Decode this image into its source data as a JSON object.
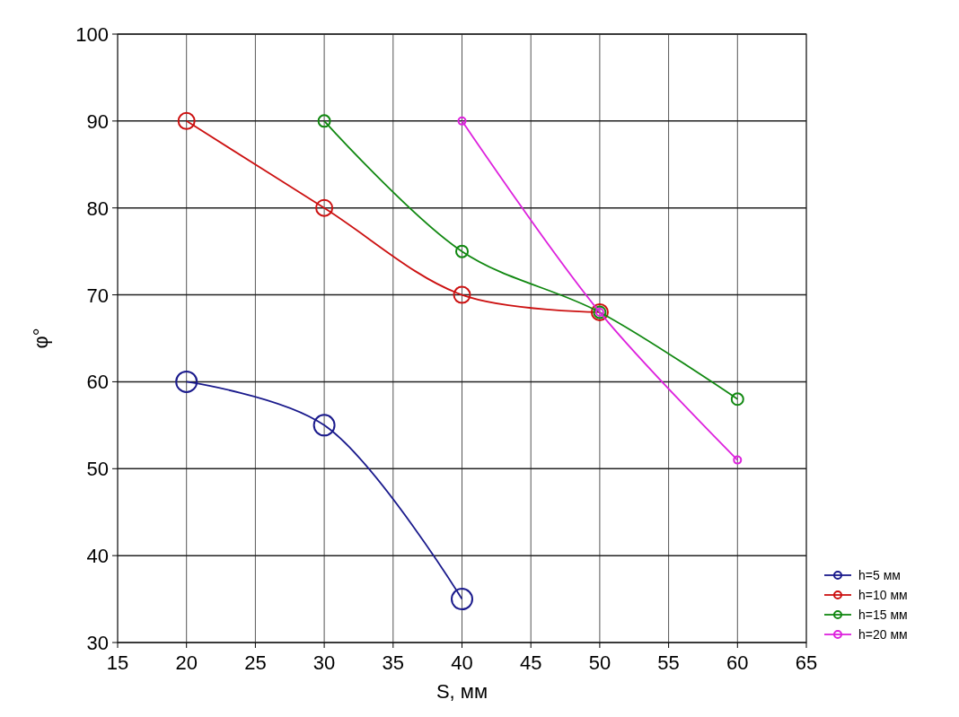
{
  "chart_data": {
    "type": "line",
    "xlabel": "S, мм",
    "ylabel": "φ°",
    "xlim": [
      15,
      65
    ],
    "ylim": [
      30,
      100
    ],
    "xticks": [
      15,
      20,
      25,
      30,
      35,
      40,
      45,
      50,
      55,
      60,
      65
    ],
    "yticks": [
      30,
      40,
      50,
      60,
      70,
      80,
      90,
      100
    ],
    "grid": true,
    "legend": "bottom right",
    "marker": "circle",
    "line_style": "solid",
    "series": [
      {
        "name": "h=5 мм",
        "color": "#1a1a8c",
        "x": [
          20,
          30,
          40
        ],
        "values": [
          60,
          55,
          35
        ]
      },
      {
        "name": "h=10 мм",
        "color": "#cc1111",
        "x": [
          20,
          30,
          40,
          50
        ],
        "values": [
          90,
          80,
          70,
          68
        ]
      },
      {
        "name": "h=15 мм",
        "color": "#118811",
        "x": [
          30,
          40,
          50,
          60
        ],
        "values": [
          90,
          75,
          68,
          58
        ]
      },
      {
        "name": "h=20 мм",
        "color": "#dd22dd",
        "x": [
          40,
          50,
          60
        ],
        "values": [
          90,
          68,
          51
        ]
      }
    ]
  }
}
